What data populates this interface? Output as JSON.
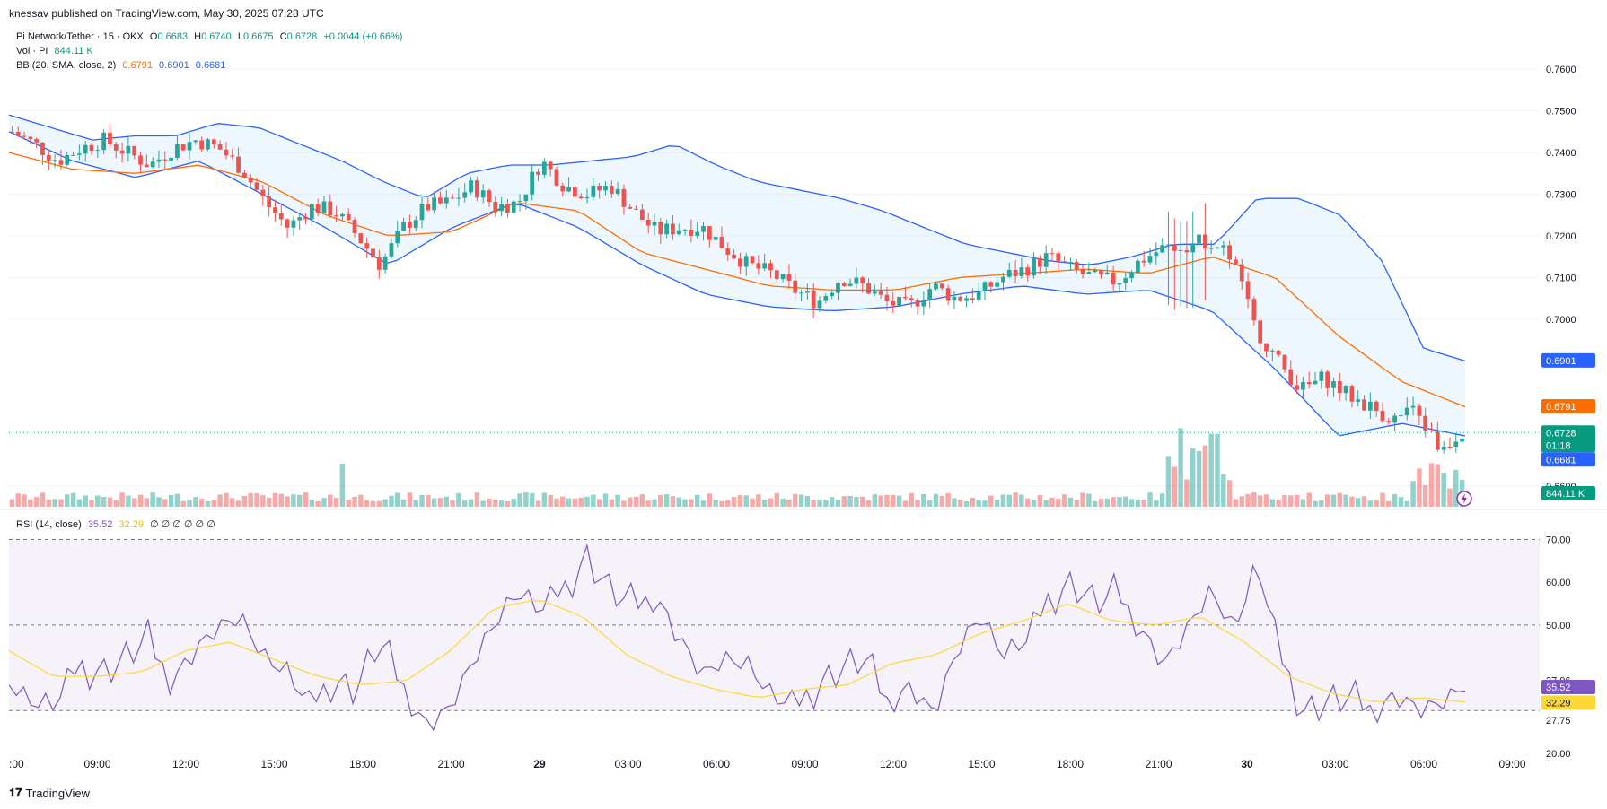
{
  "header": {
    "published": "knessav published on TradingView.com, May 30, 2025 07:28 UTC"
  },
  "legend": {
    "symbol": "Pi Network/Tether · 15 · OKX",
    "o_label": "O",
    "o": "0.6683",
    "h_label": "H",
    "h": "0.6740",
    "l_label": "L",
    "l": "0.6675",
    "c_label": "C",
    "c": "0.6728",
    "change": "+0.0044 (+0.66%)",
    "vol_label": "Vol · PI",
    "vol": "844.11 K",
    "bb_label": "BB (20, SMA, close, 2)",
    "bb_basis": "0.6791",
    "bb_upper": "0.6901",
    "bb_lower": "0.6681"
  },
  "rsi_legend": {
    "label": "RSI (14, close)",
    "rsi": "35.52",
    "ma": "32.29",
    "extras": "∅ ∅ ∅ ∅ ∅ ∅"
  },
  "colors": {
    "up": "#26a69a",
    "down": "#ef5350",
    "basis": "#ff6d00",
    "band": "#2962ff",
    "rsi": "#7e57c2",
    "rsi_ma": "#fdd835"
  },
  "chart_data": [
    {
      "type": "candlestick",
      "title": "Pi Network/Tether · 15 · OKX",
      "ylim": [
        0.655,
        0.768
      ],
      "y_ticks": [
        "0.7600",
        "0.7500",
        "0.7400",
        "0.7300",
        "0.7200",
        "0.7100",
        "0.7000",
        "0.6600"
      ],
      "x_ticks": [
        ":00",
        "09:00",
        "12:00",
        "15:00",
        "18:00",
        "21:00",
        "29",
        "03:00",
        "06:00",
        "09:00",
        "12:00",
        "15:00",
        "18:00",
        "21:00",
        "30",
        "03:00",
        "06:00",
        "09:00"
      ],
      "x_ticks_bold": [
        "29",
        "30"
      ],
      "close_path": [
        0.745,
        0.742,
        0.738,
        0.741,
        0.743,
        0.74,
        0.737,
        0.741,
        0.743,
        0.741,
        0.736,
        0.728,
        0.722,
        0.727,
        0.726,
        0.72,
        0.713,
        0.722,
        0.727,
        0.728,
        0.732,
        0.727,
        0.728,
        0.738,
        0.732,
        0.73,
        0.732,
        0.726,
        0.721,
        0.722,
        0.722,
        0.717,
        0.713,
        0.711,
        0.707,
        0.704,
        0.71,
        0.708,
        0.704,
        0.703,
        0.708,
        0.705,
        0.706,
        0.71,
        0.712,
        0.715,
        0.712,
        0.71,
        0.709,
        0.714,
        0.717,
        0.718,
        0.719,
        0.715,
        0.698,
        0.69,
        0.683,
        0.686,
        0.682,
        0.679,
        0.676,
        0.678,
        0.669,
        0.673
      ],
      "bb_upper_path": [
        0.749,
        0.746,
        0.743,
        0.744,
        0.744,
        0.747,
        0.746,
        0.742,
        0.738,
        0.733,
        0.729,
        0.735,
        0.737,
        0.737,
        0.738,
        0.739,
        0.742,
        0.737,
        0.733,
        0.731,
        0.729,
        0.726,
        0.722,
        0.718,
        0.716,
        0.714,
        0.713,
        0.715,
        0.718,
        0.718,
        0.729,
        0.729,
        0.725,
        0.714,
        0.693,
        0.69
      ],
      "bb_basis_path": [
        0.74,
        0.736,
        0.735,
        0.737,
        0.733,
        0.725,
        0.72,
        0.721,
        0.728,
        0.726,
        0.716,
        0.712,
        0.708,
        0.707,
        0.707,
        0.71,
        0.711,
        0.712,
        0.711,
        0.715,
        0.71,
        0.696,
        0.685,
        0.679
      ],
      "bb_lower_path": [
        0.745,
        0.738,
        0.734,
        0.738,
        0.73,
        0.722,
        0.713,
        0.722,
        0.728,
        0.722,
        0.713,
        0.706,
        0.703,
        0.702,
        0.703,
        0.706,
        0.708,
        0.706,
        0.707,
        0.702,
        0.688,
        0.672,
        0.675,
        0.672
      ],
      "last_price": {
        "value": "0.6728",
        "countdown": "01:18",
        "numeric": 0.6728
      },
      "bb_tags": {
        "upper": "0.6901",
        "basis": "0.6791",
        "lower": "0.6681"
      },
      "volume_tag": "844.11 K"
    },
    {
      "type": "line",
      "title": "RSI (14, close)",
      "ylim": [
        20,
        72
      ],
      "y_ticks": [
        "70.00",
        "60.00",
        "50.00",
        "37.06",
        "27.75",
        "20.00"
      ],
      "overbought": 70,
      "oversold": 30,
      "middle": 50,
      "rsi_path": [
        36,
        31,
        30,
        40,
        39,
        42,
        47,
        38,
        45,
        50,
        52,
        42,
        38,
        30,
        37,
        35,
        46,
        37,
        28,
        31,
        41,
        50,
        57,
        52,
        58,
        66,
        58,
        55,
        58,
        48,
        39,
        42,
        40,
        32,
        30,
        36,
        40,
        42,
        33,
        37,
        30,
        44,
        52,
        42,
        45,
        56,
        60,
        55,
        58,
        50,
        42,
        50,
        58,
        48,
        63,
        42,
        30,
        32,
        33,
        31,
        35,
        31,
        32,
        35.5
      ],
      "ma_path": [
        44,
        38,
        38,
        39,
        44,
        46,
        42,
        38,
        36,
        37,
        44,
        54,
        56,
        52,
        43,
        38,
        35,
        33,
        35,
        36,
        41,
        43,
        48,
        51,
        55,
        51,
        50,
        52,
        46,
        38,
        34,
        32,
        33,
        32
      ],
      "values": {
        "rsi": "35.52",
        "ma": "32.29"
      }
    }
  ],
  "footer": {
    "brand": "TradingView"
  }
}
